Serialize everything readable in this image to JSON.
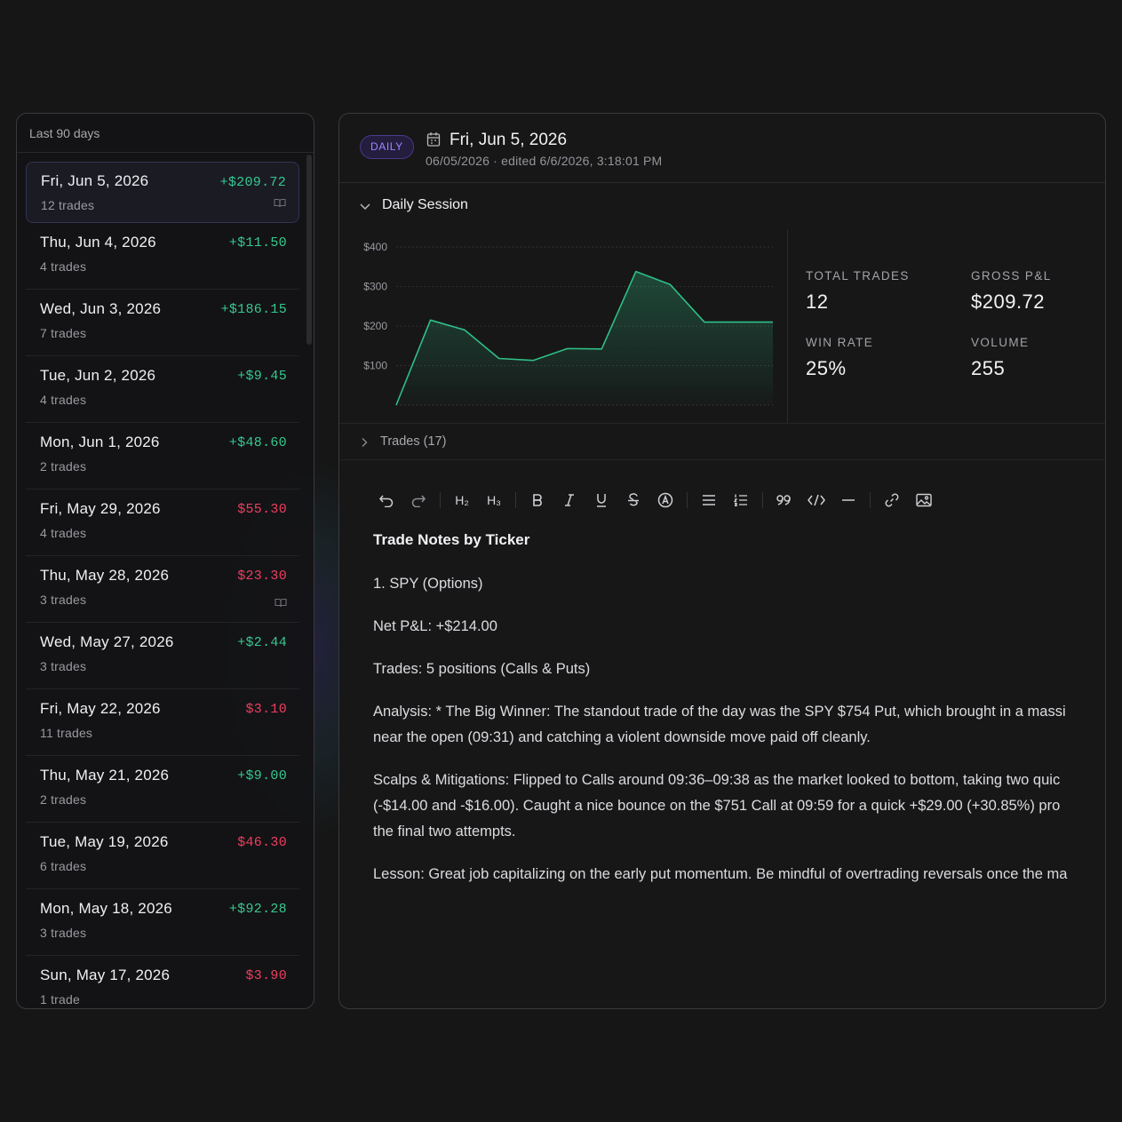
{
  "sidebar": {
    "header": "Last 90 days",
    "items": [
      {
        "date": "Fri, Jun 5, 2026",
        "trades": "12 trades",
        "pnl": "+$209.72",
        "positive": true,
        "has_note": true
      },
      {
        "date": "Thu, Jun 4, 2026",
        "trades": "4 trades",
        "pnl": "+$11.50",
        "positive": true,
        "has_note": false
      },
      {
        "date": "Wed, Jun 3, 2026",
        "trades": "7 trades",
        "pnl": "+$186.15",
        "positive": true,
        "has_note": false
      },
      {
        "date": "Tue, Jun 2, 2026",
        "trades": "4 trades",
        "pnl": "+$9.45",
        "positive": true,
        "has_note": false
      },
      {
        "date": "Mon, Jun 1, 2026",
        "trades": "2 trades",
        "pnl": "+$48.60",
        "positive": true,
        "has_note": false
      },
      {
        "date": "Fri, May 29, 2026",
        "trades": "4 trades",
        "pnl": "$55.30",
        "positive": false,
        "has_note": false
      },
      {
        "date": "Thu, May 28, 2026",
        "trades": "3 trades",
        "pnl": "$23.30",
        "positive": false,
        "has_note": true
      },
      {
        "date": "Wed, May 27, 2026",
        "trades": "3 trades",
        "pnl": "+$2.44",
        "positive": true,
        "has_note": false
      },
      {
        "date": "Fri, May 22, 2026",
        "trades": "11 trades",
        "pnl": "$3.10",
        "positive": false,
        "has_note": false
      },
      {
        "date": "Thu, May 21, 2026",
        "trades": "2 trades",
        "pnl": "+$9.00",
        "positive": true,
        "has_note": false
      },
      {
        "date": "Tue, May 19, 2026",
        "trades": "6 trades",
        "pnl": "$46.30",
        "positive": false,
        "has_note": false
      },
      {
        "date": "Mon, May 18, 2026",
        "trades": "3 trades",
        "pnl": "+$92.28",
        "positive": true,
        "has_note": false
      },
      {
        "date": "Sun, May 17, 2026",
        "trades": "1 trade",
        "pnl": "$3.90",
        "positive": false,
        "has_note": false
      }
    ]
  },
  "detail": {
    "badge": "DAILY",
    "title": "Fri, Jun 5, 2026",
    "subtitle": "06/05/2026 · edited 6/6/2026, 3:18:01 PM",
    "session_title": "Daily Session",
    "trades_label": "Trades (17)",
    "stats": {
      "total_trades_label": "TOTAL TRADES",
      "total_trades": "12",
      "gross_pnl_label": "GROSS P&L",
      "gross_pnl": "$209.72",
      "win_rate_label": "WIN RATE",
      "win_rate": "25%",
      "volume_label": "VOLUME",
      "volume": "255"
    }
  },
  "toolbar": {
    "h2": "H₂",
    "h3": "H₃",
    "icons": [
      "undo-icon",
      "redo-icon",
      "heading-2-icon",
      "heading-3-icon",
      "bold-icon",
      "italic-icon",
      "underline-icon",
      "strikethrough-icon",
      "highlight-icon",
      "bullet-list-icon",
      "ordered-list-icon",
      "quote-icon",
      "code-icon",
      "horizontal-rule-icon",
      "link-icon",
      "image-icon"
    ]
  },
  "notes": {
    "heading": "Trade Notes by Ticker",
    "p1": "1. SPY (Options)",
    "p2": "Net P&L: +$214.00",
    "p3": "Trades: 5 positions (Calls & Puts)",
    "p4a": "Analysis: * The Big Winner: The standout trade of the day was the SPY $754 Put, which brought in a massi",
    "p4b": "near the open (09:31) and catching a violent downside move paid off cleanly.",
    "p5a": "Scalps & Mitigations: Flipped to Calls around 09:36–09:38 as the market looked to bottom, taking two quic",
    "p5b": "(-$14.00 and -$16.00). Caught a nice bounce on the $751 Call at 09:59 for a quick +$29.00 (+30.85%) pro",
    "p5c": "the final two attempts.",
    "p6": "Lesson: Great job capitalizing on the early put momentum. Be mindful of overtrading reversals once the ma"
  },
  "chart_data": {
    "type": "area",
    "x": [
      1,
      2,
      3,
      4,
      5,
      6,
      7,
      8,
      9,
      10,
      11,
      12
    ],
    "values": [
      0,
      215,
      190,
      118,
      113,
      143,
      142,
      338,
      305,
      210,
      210,
      210
    ],
    "ylabel": "",
    "yticks": [
      "$100",
      "$200",
      "$300",
      "$400"
    ],
    "ylim": [
      0,
      400
    ],
    "grid": true,
    "color": "#2fbf86"
  }
}
